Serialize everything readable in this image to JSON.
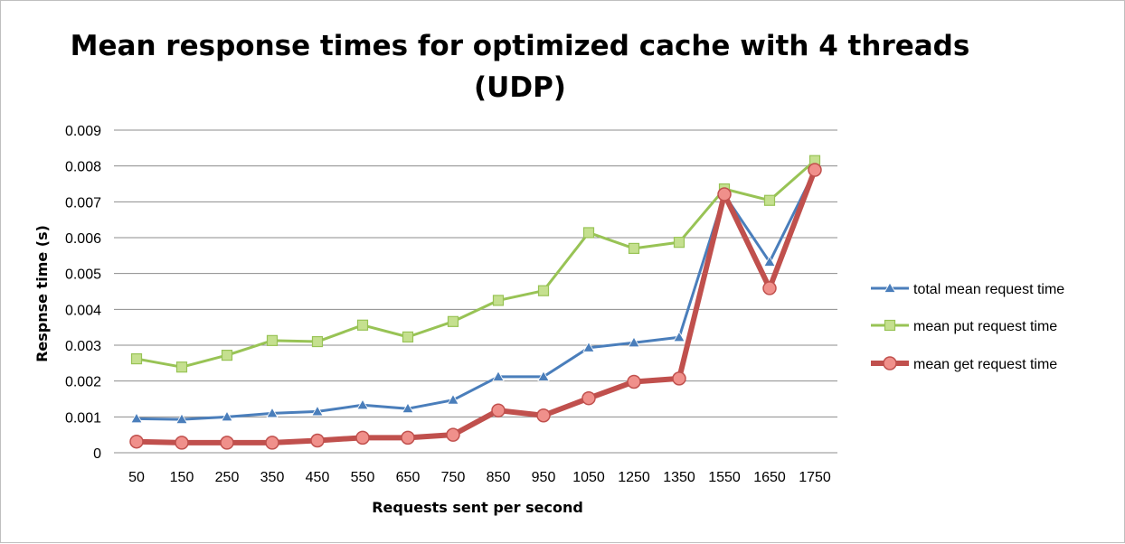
{
  "chart_data": {
    "type": "line",
    "title": "Mean response times for optimized cache with 4 threads (UDP)",
    "title_lines": [
      "Mean response times for optimized cache with 4 threads",
      "(UDP)"
    ],
    "xlabel": "Requests sent per second",
    "ylabel": "Respnse time (s)",
    "categories": [
      "50",
      "150",
      "250",
      "350",
      "450",
      "550",
      "650",
      "750",
      "850",
      "950",
      "1050",
      "1250",
      "1350",
      "1550",
      "1650",
      "1750"
    ],
    "ylim": [
      0,
      0.009
    ],
    "yticks": [
      "0",
      "0.001",
      "0.002",
      "0.003",
      "0.004",
      "0.005",
      "0.006",
      "0.007",
      "0.008",
      "0.009"
    ],
    "grid": true,
    "legend_position": "right",
    "series": [
      {
        "name": "total mean request time",
        "color": "#4a7ebb",
        "marker": "triangle",
        "values": [
          0.00095,
          0.00093,
          0.001,
          0.0011,
          0.00115,
          0.00133,
          0.00123,
          0.00147,
          0.00212,
          0.00212,
          0.00293,
          0.00307,
          0.00322,
          0.0072,
          0.00532,
          0.00787
        ]
      },
      {
        "name": "mean put request time",
        "color": "#98c355",
        "marker": "square",
        "values": [
          0.00262,
          0.00239,
          0.00272,
          0.00313,
          0.0031,
          0.00356,
          0.00323,
          0.00366,
          0.00425,
          0.00452,
          0.00614,
          0.0057,
          0.00587,
          0.00736,
          0.00704,
          0.00815
        ]
      },
      {
        "name": "mean get request time",
        "color": "#c0504d",
        "marker": "circle",
        "values": [
          0.00031,
          0.00028,
          0.00028,
          0.00028,
          0.00034,
          0.00042,
          0.00042,
          0.0005,
          0.00118,
          0.00104,
          0.00152,
          0.00198,
          0.00207,
          0.00721,
          0.00459,
          0.00789
        ]
      }
    ]
  }
}
